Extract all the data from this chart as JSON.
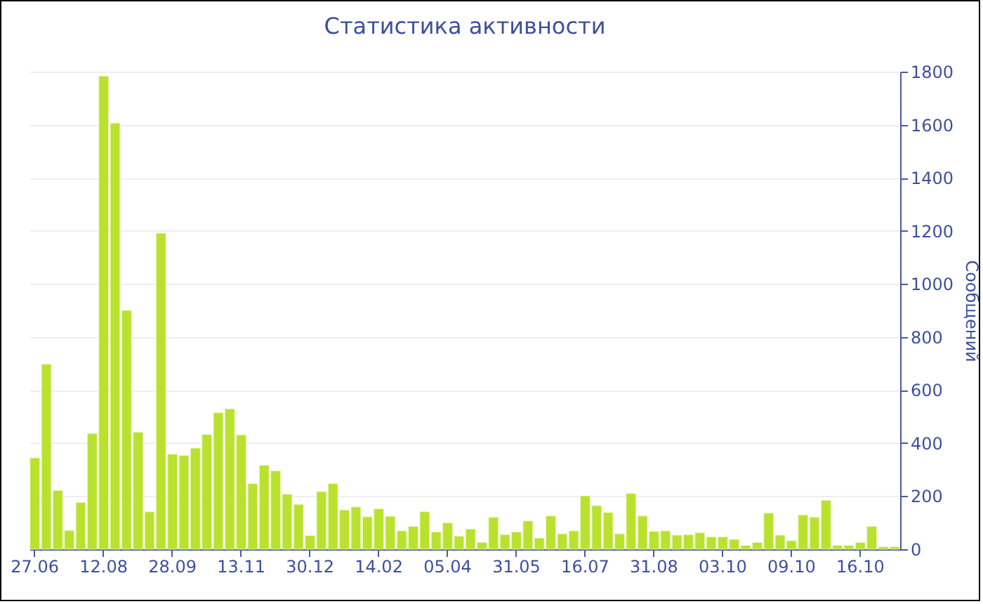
{
  "chart_data": {
    "type": "bar",
    "title": "Статистика активности",
    "ylabel": "Сообщений",
    "categories": [
      "27.06",
      null,
      null,
      null,
      null,
      null,
      "12.08",
      null,
      null,
      null,
      null,
      null,
      "28.09",
      null,
      null,
      null,
      null,
      null,
      "13.11",
      null,
      null,
      null,
      null,
      null,
      "30.12",
      null,
      null,
      null,
      null,
      null,
      "14.02",
      null,
      null,
      null,
      null,
      null,
      "05.04",
      null,
      null,
      null,
      null,
      null,
      "31.05",
      null,
      null,
      null,
      null,
      null,
      "16.07",
      null,
      null,
      null,
      null,
      null,
      "31.08",
      null,
      null,
      null,
      null,
      null,
      "03.10",
      null,
      null,
      null,
      null,
      null,
      "09.10",
      null,
      null,
      null,
      null,
      null,
      "16.10",
      null,
      null,
      null
    ],
    "values": [
      344,
      697,
      221,
      71,
      176,
      436,
      1783,
      1606,
      900,
      441,
      141,
      1191,
      358,
      353,
      381,
      432,
      514,
      529,
      431,
      247,
      316,
      295,
      207,
      169,
      51,
      217,
      247,
      148,
      159,
      122,
      152,
      124,
      69,
      86,
      141,
      65,
      99,
      49,
      76,
      26,
      120,
      55,
      65,
      106,
      42,
      125,
      58,
      69,
      201,
      164,
      138,
      58,
      210,
      125,
      67,
      69,
      53,
      55,
      62,
      46,
      46,
      37,
      14,
      25,
      136,
      53,
      32,
      129,
      120,
      184,
      14,
      14,
      25,
      86,
      9,
      9
    ],
    "color": "#b8e22e",
    "ylim": [
      0,
      1800
    ],
    "yticks": [
      0,
      200,
      400,
      600,
      800,
      1000,
      1200,
      1400,
      1600,
      1800
    ],
    "grid": "y"
  }
}
